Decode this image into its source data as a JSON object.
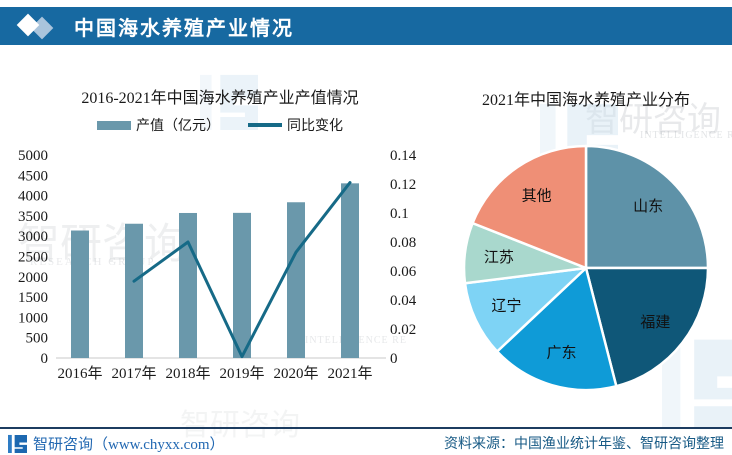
{
  "header": {
    "title": "中国海水养殖产业情况",
    "bg_color": "#1769a1",
    "diamond_colors": [
      "#ffffff",
      "#a9c4dc"
    ]
  },
  "chart_data": [
    {
      "type": "bar-line",
      "title": "2016-2021年中国海水养殖产业产值情况",
      "categories": [
        "2016年",
        "2017年",
        "2018年",
        "2019年",
        "2020年",
        "2021年"
      ],
      "series": [
        {
          "name": "产值（亿元）",
          "type": "bar",
          "axis": "left",
          "color": "#6a98ab",
          "values": [
            3140,
            3307,
            3572,
            3575,
            3836,
            4302
          ]
        },
        {
          "name": "同比变化",
          "type": "line",
          "axis": "right",
          "color": "#166a87",
          "values": [
            null,
            0.053,
            0.08,
            0.001,
            0.073,
            0.121
          ]
        }
      ],
      "left_axis": {
        "min": 0,
        "max": 5000,
        "step": 500
      },
      "right_axis": {
        "min": 0,
        "max": 0.14,
        "step": 0.02
      },
      "grid": false,
      "legend_position": "top"
    },
    {
      "type": "pie",
      "title": "2021年中国海水养殖产业分布",
      "labels": [
        "山东",
        "福建",
        "广东",
        "辽宁",
        "江苏",
        "其他"
      ],
      "values": [
        25,
        21,
        17,
        10,
        8,
        19
      ],
      "colors": [
        "#5e92a8",
        "#0f5778",
        "#0f9bd7",
        "#7ed3f5",
        "#a9d8cd",
        "#ef8f76"
      ],
      "start_angle_deg": 0,
      "direction": "clockwise",
      "label_color": "#111111"
    }
  ],
  "footer": {
    "brand": "智研咨询（www.chyxx.com）",
    "source": "资料来源：中国渔业统计年鉴、智研咨询整理"
  },
  "watermarks": {
    "brand": "智研咨询",
    "group": "RESEARCH GROUP",
    "intel": "INTELLIGENCE RE"
  }
}
